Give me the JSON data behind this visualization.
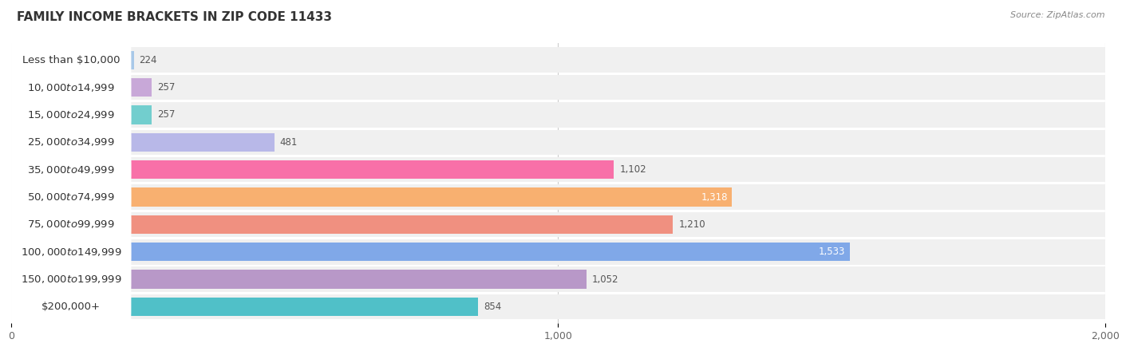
{
  "title": "FAMILY INCOME BRACKETS IN ZIP CODE 11433",
  "source": "Source: ZipAtlas.com",
  "categories": [
    "Less than $10,000",
    "$10,000 to $14,999",
    "$15,000 to $24,999",
    "$25,000 to $34,999",
    "$35,000 to $49,999",
    "$50,000 to $74,999",
    "$75,000 to $99,999",
    "$100,000 to $149,999",
    "$150,000 to $199,999",
    "$200,000+"
  ],
  "values": [
    224,
    257,
    257,
    481,
    1102,
    1318,
    1210,
    1533,
    1052,
    854
  ],
  "bar_colors": [
    "#a8c8e8",
    "#c8a8d8",
    "#72cece",
    "#b8b8e8",
    "#f870a8",
    "#f8b070",
    "#f09080",
    "#80a8e8",
    "#b898c8",
    "#50c0c8"
  ],
  "xlim": [
    0,
    2000
  ],
  "xticks": [
    0,
    1000,
    2000
  ],
  "background_color": "#ffffff",
  "bar_bg_color": "#ebebeb",
  "row_bg_color": "#f0f0f0",
  "title_fontsize": 11,
  "label_fontsize": 9.5,
  "value_fontsize": 8.5,
  "value_color_inside": "#ffffff",
  "value_color_outside": "#555555",
  "inside_threshold": 1300
}
